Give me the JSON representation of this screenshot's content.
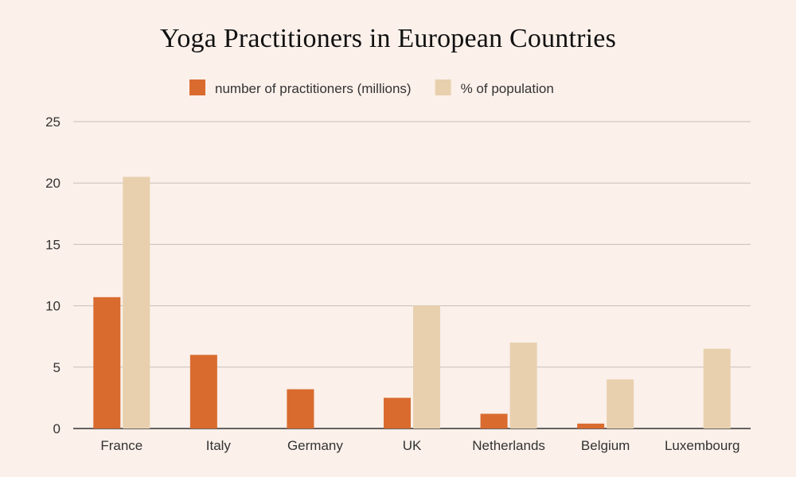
{
  "chart_data": {
    "type": "bar",
    "title": "Yoga Practitioners in European Countries",
    "categories": [
      "France",
      "Italy",
      "Germany",
      "UK",
      "Netherlands",
      "Belgium",
      "Luxembourg"
    ],
    "series": [
      {
        "name": "number of practitioners (millions)",
        "color": "#d96b2f",
        "values": [
          10.7,
          6.0,
          3.2,
          2.5,
          1.2,
          0.4,
          null
        ]
      },
      {
        "name": "% of population",
        "color": "#e8d0ae",
        "values": [
          20.5,
          null,
          null,
          10.0,
          7.0,
          4.0,
          6.5
        ]
      }
    ],
    "y_ticks": [
      "0",
      "5",
      "10",
      "15",
      "20",
      "25"
    ],
    "ylim": [
      0,
      25
    ],
    "xlabel": "",
    "ylabel": "",
    "grid": true,
    "legend_position": "top"
  }
}
